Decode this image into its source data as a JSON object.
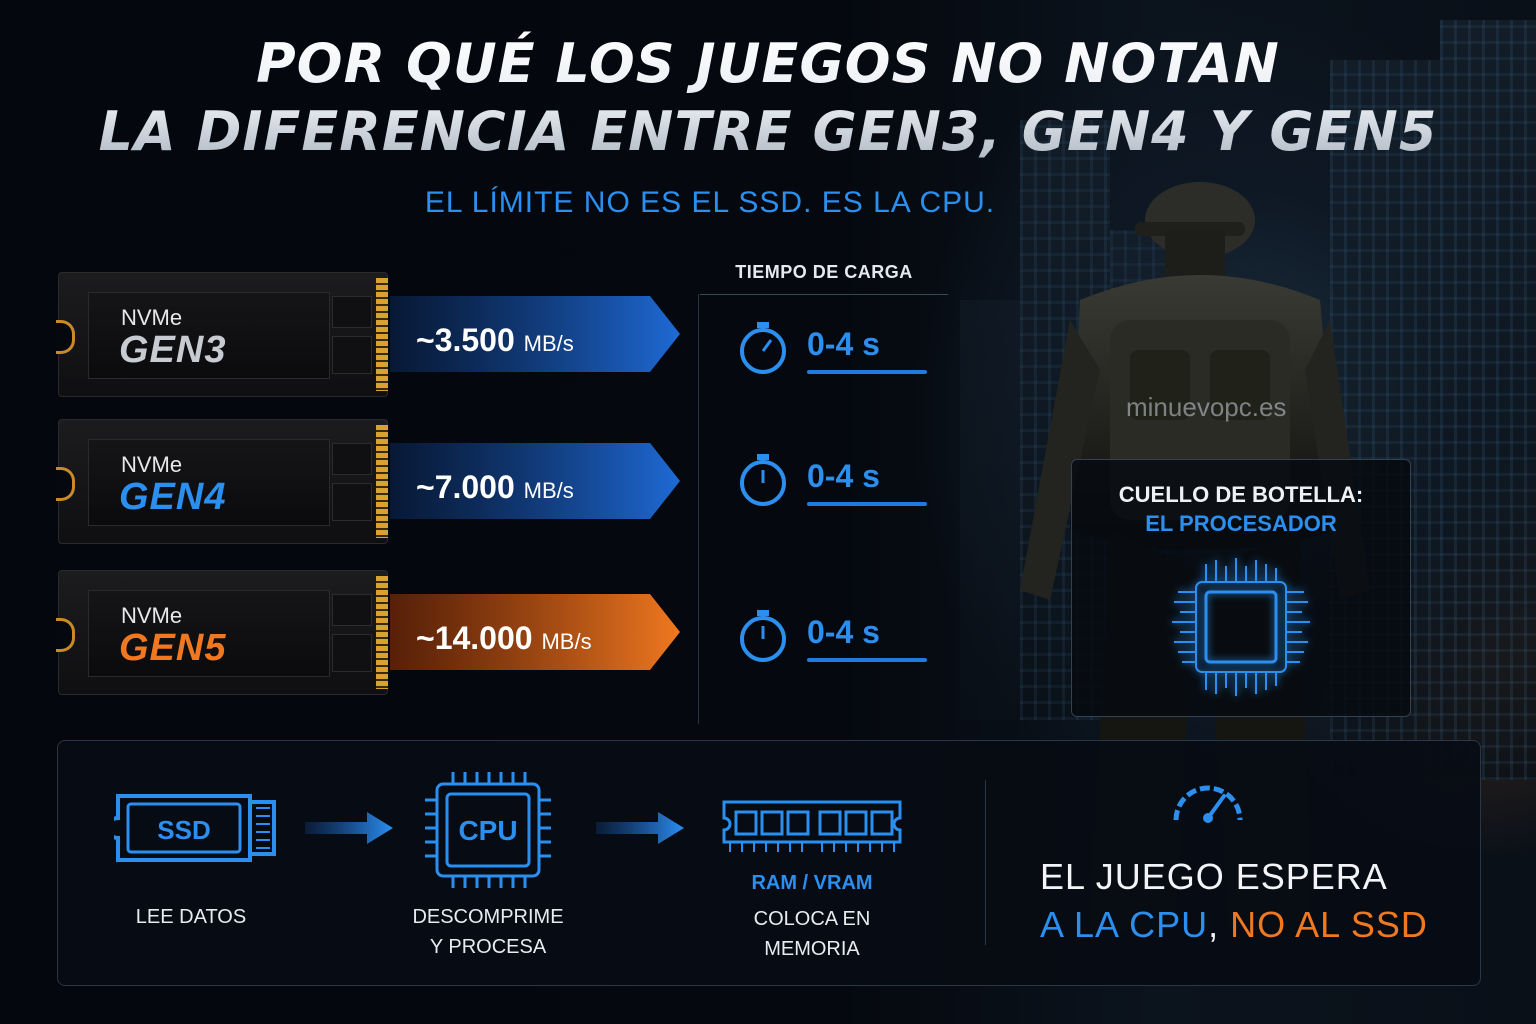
{
  "title": {
    "line1": "POR QUÉ LOS JUEGOS NO NOTAN",
    "line2": "LA DIFERENCIA ENTRE GEN3, GEN4 Y GEN5"
  },
  "subtitle": "EL LÍMITE NO ES EL SSD. ES LA CPU.",
  "load_header": "TIEMPO DE CARGA",
  "ssds": [
    {
      "nvme": "NVMe",
      "gen": "GEN3",
      "speed": "~3.500",
      "unit": "MB/s",
      "load": "0-4 s",
      "gen_color": "#c8ccd2",
      "arrow_color": "#1a5fc4"
    },
    {
      "nvme": "NVMe",
      "gen": "GEN4",
      "speed": "~7.000",
      "unit": "MB/s",
      "load": "0-4 s",
      "gen_color": "#2b8ff0",
      "arrow_color": "#1a5fc4"
    },
    {
      "nvme": "NVMe",
      "gen": "GEN5",
      "speed": "~14.000",
      "unit": "MB/s",
      "load": "0-4 s",
      "gen_color": "#f07820",
      "arrow_color": "#e8661a"
    }
  ],
  "watermark": "minuevopc.es",
  "bottleneck": {
    "line1": "CUELLO DE BOTELLA:",
    "line2": "EL PROCESADOR"
  },
  "flow": {
    "ssd_label": "SSD",
    "ssd_caption": "LEE DATOS",
    "cpu_label": "CPU",
    "cpu_caption_1": "DESCOMPRIME",
    "cpu_caption_2": "Y PROCESA",
    "ram_title": "RAM / VRAM",
    "ram_caption_1": "COLOCA EN",
    "ram_caption_2": "MEMORIA"
  },
  "conclusion": {
    "line1": "EL JUEGO ESPERA",
    "part_blue": "A LA CPU",
    "part_comma": ",",
    "part_orange": "NO AL SSD"
  },
  "icons": {
    "stopwatch": "stopwatch-icon",
    "chip": "cpu-chip-icon",
    "gauge": "speedometer-icon",
    "arrow": "arrow-right-icon"
  }
}
